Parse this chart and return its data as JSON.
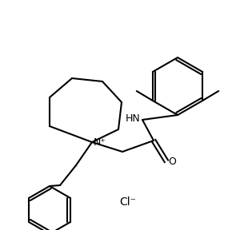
{
  "background_color": "#ffffff",
  "line_color": "#000000",
  "line_width": 1.5,
  "font_size": 9,
  "figsize": [
    2.85,
    2.88
  ],
  "dpi": 100,
  "cl_label": "Cl⁻",
  "N_label": "N⁺",
  "HN_label": "HN",
  "O_label": "O"
}
